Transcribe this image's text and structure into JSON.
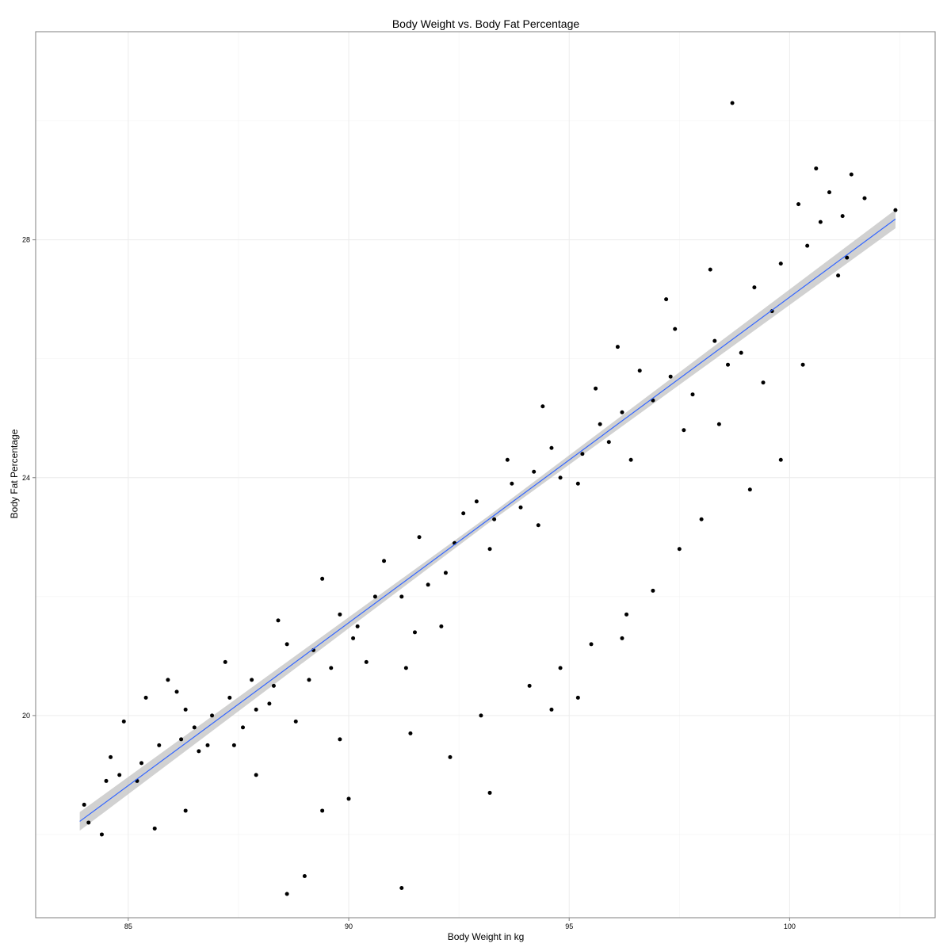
{
  "chart_data": {
    "type": "scatter",
    "title": "Body Weight vs. Body Fat Percentage",
    "xlabel": "Body Weight in kg",
    "ylabel": "Body Fat Percentage",
    "xlim": [
      82.9,
      103.3
    ],
    "ylim": [
      16.6,
      31.5
    ],
    "x_ticks": [
      85,
      90,
      95,
      100
    ],
    "y_ticks": [
      20,
      24,
      28
    ],
    "grid": true,
    "background": "#ffffff",
    "grid_color": "#ececec",
    "frame_color": "#7f7f7f",
    "point_color": "#000000",
    "trend_line": {
      "type": "linear",
      "x": [
        83.9,
        102.4
      ],
      "y": [
        18.22,
        28.35
      ],
      "color": "#3366ff",
      "ci_halfwidth": 0.12,
      "ci_color": "#bdbdbd"
    },
    "series": [
      {
        "x": [
          84.0,
          84.1,
          84.5,
          84.6,
          84.4,
          84.9,
          84.8,
          85.3,
          85.7,
          85.2,
          85.9,
          85.4,
          86.2,
          86.3,
          86.6,
          86.9,
          86.5,
          86.1,
          86.8,
          87.3,
          87.8,
          87.6,
          87.2,
          87.9,
          87.4,
          88.3,
          88.6,
          88.2,
          88.8,
          88.4,
          89.2,
          89.6,
          89.4,
          89.8,
          89.1,
          90.2,
          90.6,
          90.4,
          90.8,
          90.1,
          91.2,
          91.5,
          91.8,
          91.3,
          91.6,
          92.2,
          92.6,
          92.4,
          92.9,
          92.1,
          93.3,
          93.7,
          93.6,
          93.2,
          93.9,
          94.2,
          94.6,
          94.3,
          94.8,
          94.4,
          95.3,
          95.7,
          95.6,
          95.2,
          95.9,
          96.2,
          96.6,
          96.4,
          96.9,
          96.1,
          97.3,
          97.6,
          97.4,
          97.8,
          97.2,
          98.3,
          98.6,
          98.2,
          98.9,
          98.4,
          99.2,
          99.6,
          99.8,
          99.4,
          100.2,
          100.4,
          100.7,
          100.9,
          100.6,
          101.2,
          101.4,
          101.3,
          101.7,
          102.4,
          88.6,
          89.0,
          91.2,
          93.2,
          94.6,
          95.2,
          96.2,
          98.7,
          89.4,
          90.0,
          92.3,
          94.1,
          96.3,
          97.5,
          99.1,
          99.8,
          85.6,
          86.3,
          87.9,
          89.8,
          91.4,
          93.0,
          94.8,
          95.5,
          96.9,
          98.0,
          100.3,
          101.1
        ],
        "y": [
          18.5,
          18.2,
          18.9,
          19.3,
          18.0,
          19.9,
          19.0,
          19.2,
          19.5,
          18.9,
          20.6,
          20.3,
          19.6,
          20.1,
          19.4,
          20.0,
          19.8,
          20.4,
          19.5,
          20.3,
          20.6,
          19.8,
          20.9,
          20.1,
          19.5,
          20.5,
          21.2,
          20.2,
          19.9,
          21.6,
          21.1,
          20.8,
          22.3,
          21.7,
          20.6,
          21.5,
          22.0,
          20.9,
          22.6,
          21.3,
          22.0,
          21.4,
          22.2,
          20.8,
          23.0,
          22.4,
          23.4,
          22.9,
          23.6,
          21.5,
          23.3,
          23.9,
          24.3,
          22.8,
          23.5,
          24.1,
          24.5,
          23.2,
          24.0,
          25.2,
          24.4,
          24.9,
          25.5,
          23.9,
          24.6,
          25.1,
          25.8,
          24.3,
          25.3,
          26.2,
          25.7,
          24.8,
          26.5,
          25.4,
          27.0,
          26.3,
          25.9,
          27.5,
          26.1,
          24.9,
          27.2,
          26.8,
          27.6,
          25.6,
          28.6,
          27.9,
          28.3,
          28.8,
          29.2,
          28.4,
          29.1,
          27.7,
          28.7,
          28.5,
          17.0,
          17.3,
          17.1,
          18.7,
          20.1,
          20.3,
          21.3,
          30.3,
          18.4,
          18.6,
          19.3,
          20.5,
          21.7,
          22.8,
          23.8,
          24.3,
          18.1,
          18.4,
          19.0,
          19.6,
          19.7,
          20.0,
          20.8,
          21.2,
          22.1,
          23.3,
          25.9,
          27.4
        ]
      }
    ]
  }
}
